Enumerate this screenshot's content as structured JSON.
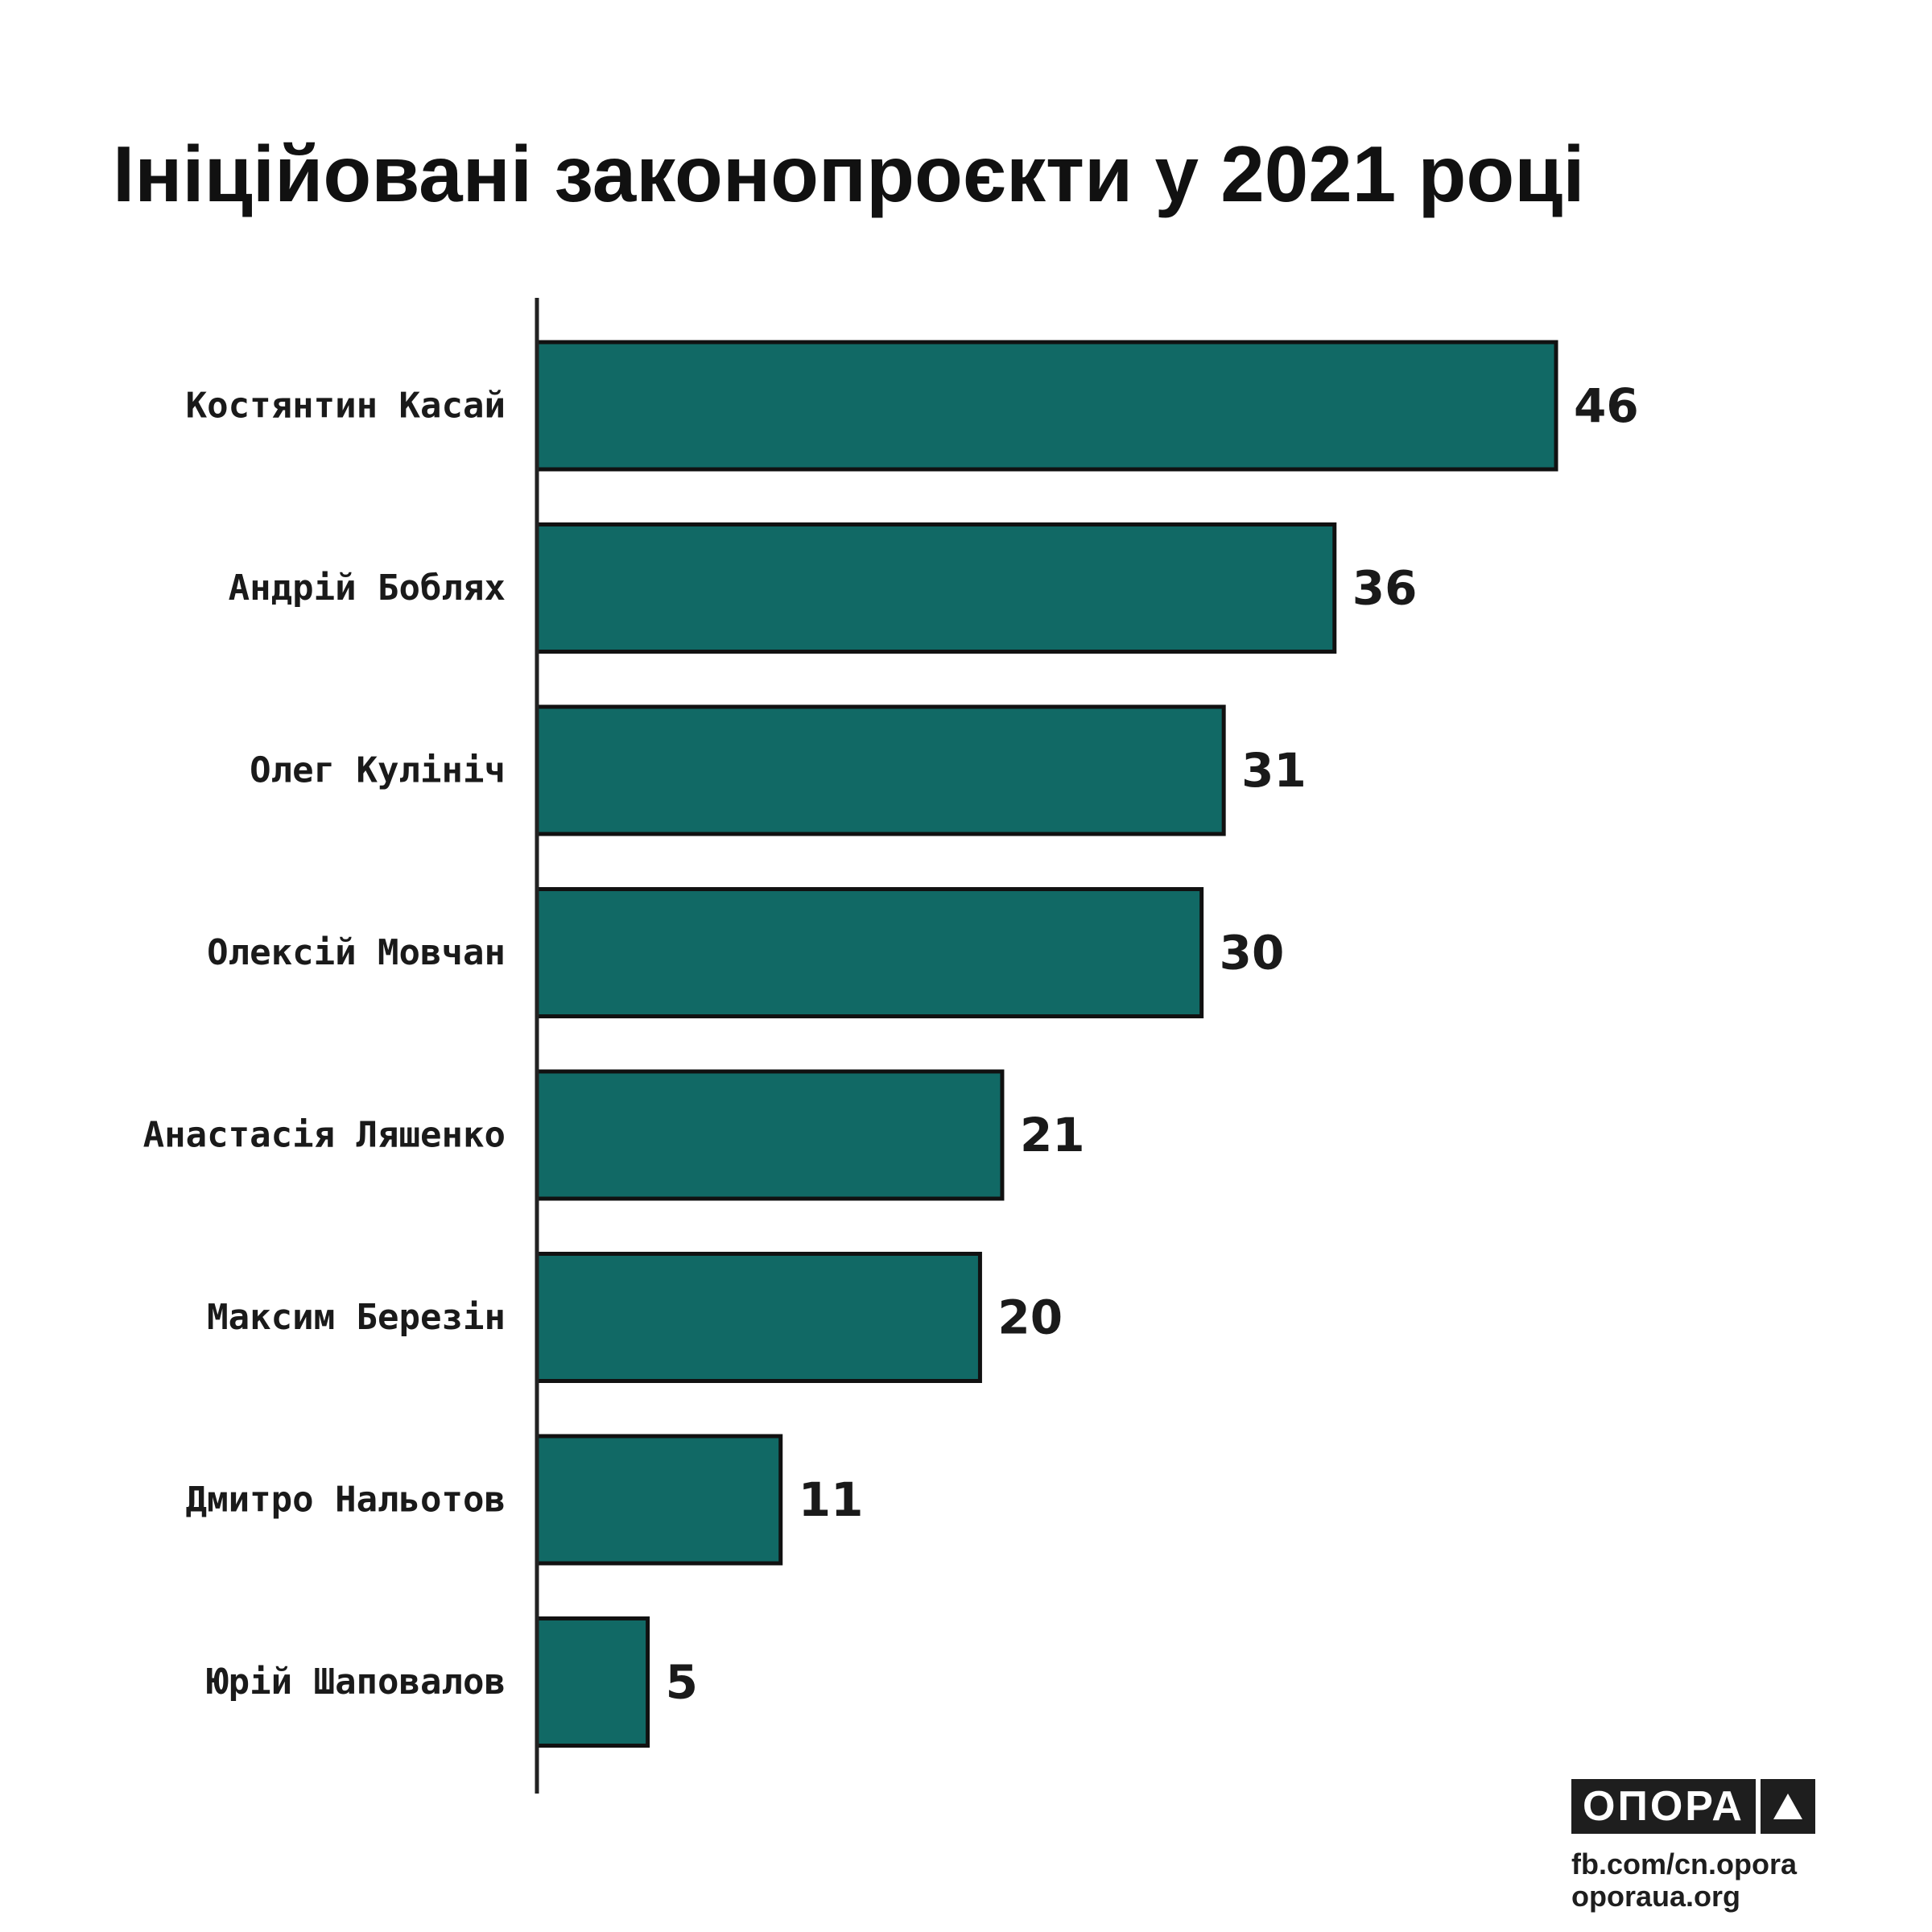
{
  "title": "Ініційовані законопроєкти у 2021 році",
  "chart_data": {
    "type": "bar",
    "orientation": "horizontal",
    "categories": [
      "Костянтин Касай",
      "Андрій Боблях",
      "Олег Кулініч",
      "Олексій Мовчан",
      "Анастасія Ляшенко",
      "Максим Березін",
      "Дмитро Нальотов",
      "Юрій Шаповалов"
    ],
    "values": [
      46,
      36,
      31,
      30,
      21,
      20,
      11,
      5
    ],
    "xlim": [
      0,
      46
    ],
    "grid": false,
    "bar_color": "#116965",
    "bar_edge_color": "#111111"
  },
  "footer": {
    "logo_text": "ОПОРА",
    "logo_icon": "triangle-icon",
    "links": [
      "fb.com/cn.opora",
      "oporaua.org"
    ]
  }
}
